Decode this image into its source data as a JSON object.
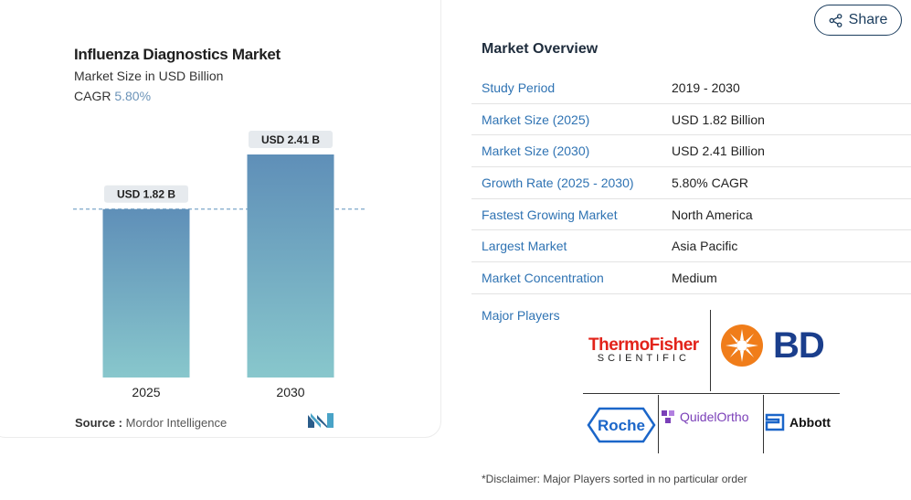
{
  "chart_data": {
    "type": "bar",
    "title": "Influenza Diagnostics Market",
    "subtitle": "Market Size in USD Billion",
    "cagr_label": "CAGR",
    "cagr_value": "5.80%",
    "categories": [
      "2025",
      "2030"
    ],
    "values": [
      1.82,
      2.41
    ],
    "data_labels": [
      "USD 1.82 B",
      "USD 2.41 B"
    ],
    "ylim": [
      0,
      2.41
    ],
    "grid": false,
    "reference_line_at": 1.82,
    "colors": {
      "bar_top": "#5f8fb8",
      "bar_bottom": "#88c7cc",
      "label_bg": "#e6eaee",
      "ref_line": "#7da7c9"
    }
  },
  "source": {
    "label": "Source :",
    "value": "Mordor Intelligence"
  },
  "share": {
    "label": "Share",
    "icon": "share-icon"
  },
  "overview": {
    "title": "Market Overview",
    "rows": [
      {
        "label": "Study Period",
        "value": "2019 - 2030"
      },
      {
        "label": "Market Size (2025)",
        "value": "USD 1.82 Billion"
      },
      {
        "label": "Market Size (2030)",
        "value": "USD 2.41 Billion"
      },
      {
        "label": "Growth Rate (2025 - 2030)",
        "value": "5.80% CAGR"
      },
      {
        "label": "Fastest Growing Market",
        "value": "North America"
      },
      {
        "label": "Largest Market",
        "value": "Asia Pacific"
      },
      {
        "label": "Market Concentration",
        "value": "Medium"
      }
    ]
  },
  "players": {
    "label": "Major Players",
    "thermo_top": "ThermoFisher",
    "thermo_bottom": "SCIENTIFIC",
    "bd": "BD",
    "roche": "Roche",
    "quidel": "QuidelOrtho",
    "abbott": "Abbott"
  },
  "disclaimer": "*Disclaimer: Major Players sorted in no particular order"
}
